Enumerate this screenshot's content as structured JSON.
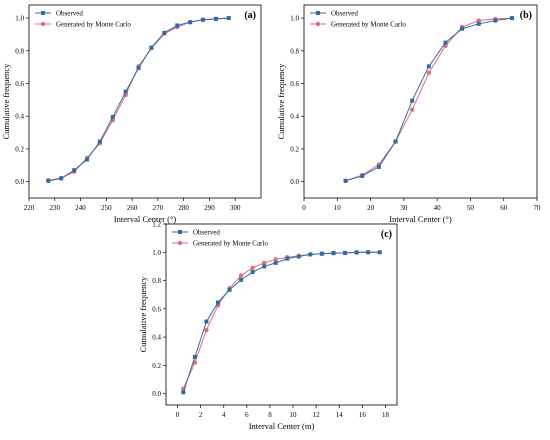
{
  "chart_data": [
    {
      "type": "line",
      "panel_label": "(a)",
      "xlabel": "Interval Center (°)",
      "ylabel": "Cumulative frequency",
      "xlim": [
        220,
        310
      ],
      "ylim": [
        -0.1,
        1.08
      ],
      "xticks": [
        220,
        230,
        240,
        250,
        260,
        270,
        280,
        290,
        300
      ],
      "yticks": [
        0.0,
        0.2,
        0.4,
        0.6,
        0.8,
        1.0
      ],
      "legend_position": "top-left",
      "series": [
        {
          "name": "Observed",
          "color": "#2e6da4",
          "marker": "square",
          "x": [
            227.5,
            232.5,
            237.5,
            242.5,
            247.5,
            252.5,
            257.5,
            262.5,
            267.5,
            272.5,
            277.5,
            282.5,
            287.5,
            292.5,
            297.5
          ],
          "y": [
            0.005,
            0.02,
            0.07,
            0.135,
            0.245,
            0.395,
            0.55,
            0.695,
            0.82,
            0.91,
            0.955,
            0.975,
            0.99,
            0.995,
            1.0
          ]
        },
        {
          "name": "Generated by Monte Carlo",
          "color": "#e06c7f",
          "marker": "circle",
          "x": [
            227.5,
            232.5,
            237.5,
            242.5,
            247.5,
            252.5,
            257.5,
            262.5,
            267.5,
            272.5,
            277.5,
            282.5,
            287.5,
            292.5,
            297.5
          ],
          "y": [
            0.008,
            0.022,
            0.06,
            0.145,
            0.235,
            0.375,
            0.53,
            0.705,
            0.815,
            0.905,
            0.945,
            0.975,
            0.99,
            0.995,
            1.0
          ]
        }
      ]
    },
    {
      "type": "line",
      "panel_label": "(b)",
      "xlabel": "Interval Center (°)",
      "ylabel": "Cumulative frequency",
      "xlim": [
        0,
        70
      ],
      "ylim": [
        -0.1,
        1.08
      ],
      "xticks": [
        0,
        10,
        20,
        30,
        40,
        50,
        60,
        70
      ],
      "yticks": [
        0.0,
        0.2,
        0.4,
        0.6,
        0.8,
        1.0
      ],
      "legend_position": "top-left",
      "series": [
        {
          "name": "Observed",
          "color": "#2e6da4",
          "marker": "square",
          "x": [
            12.5,
            17.5,
            22.5,
            27.5,
            32.5,
            37.5,
            42.5,
            47.5,
            52.5,
            57.5,
            62.5
          ],
          "y": [
            0.005,
            0.035,
            0.09,
            0.245,
            0.495,
            0.705,
            0.85,
            0.935,
            0.965,
            0.985,
            1.0
          ]
        },
        {
          "name": "Generated by Monte Carlo",
          "color": "#e06c7f",
          "marker": "circle",
          "x": [
            12.5,
            17.5,
            22.5,
            27.5,
            32.5,
            37.5,
            42.5,
            47.5,
            52.5,
            57.5,
            62.5
          ],
          "y": [
            0.005,
            0.04,
            0.105,
            0.245,
            0.44,
            0.665,
            0.83,
            0.945,
            0.985,
            0.995,
            1.0
          ]
        }
      ]
    },
    {
      "type": "line",
      "panel_label": "(c)",
      "xlabel": "Interval Center (m)",
      "ylabel": "Cumulative frequency",
      "xlim": [
        -1,
        19
      ],
      "ylim": [
        -0.08,
        1.2
      ],
      "xticks": [
        0,
        2,
        4,
        6,
        8,
        10,
        12,
        14,
        16,
        18
      ],
      "yticks": [
        0.0,
        0.2,
        0.4,
        0.6,
        0.8,
        1.0,
        1.2
      ],
      "legend_position": "top-left",
      "series": [
        {
          "name": "Observed",
          "color": "#2e6da4",
          "marker": "square",
          "x": [
            0.5,
            1.5,
            2.5,
            3.5,
            4.5,
            5.5,
            6.5,
            7.5,
            8.5,
            9.5,
            10.5,
            11.5,
            12.5,
            13.5,
            14.5,
            15.5,
            16.5,
            17.5
          ],
          "y": [
            0.01,
            0.26,
            0.51,
            0.645,
            0.735,
            0.805,
            0.86,
            0.9,
            0.925,
            0.955,
            0.97,
            0.985,
            0.99,
            0.995,
            0.995,
            1.0,
            1.0,
            1.0
          ]
        },
        {
          "name": "Generated by Monte Carlo",
          "color": "#e06c7f",
          "marker": "circle",
          "x": [
            0.5,
            1.5,
            2.5,
            3.5,
            4.5,
            5.5,
            6.5,
            7.5,
            8.5,
            9.5,
            10.5,
            11.5,
            12.5,
            13.5,
            14.5,
            15.5,
            16.5,
            17.5
          ],
          "y": [
            0.035,
            0.22,
            0.45,
            0.625,
            0.745,
            0.835,
            0.89,
            0.925,
            0.95,
            0.965,
            0.975,
            0.985,
            0.99,
            0.993,
            0.996,
            0.998,
            1.0,
            1.0
          ]
        }
      ]
    }
  ]
}
